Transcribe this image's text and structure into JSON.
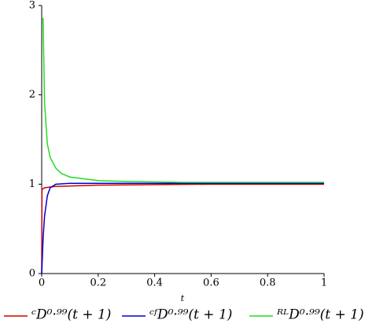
{
  "chart_data": {
    "type": "line",
    "x_label": "t",
    "xlim": [
      0,
      1
    ],
    "ylim": [
      0,
      3
    ],
    "xticks": [
      0,
      0.2,
      0.4,
      0.6,
      0.8,
      1
    ],
    "yticks": [
      0,
      1,
      2,
      3
    ],
    "series": [
      {
        "name": "ᶜD⁰·⁹⁹(t + 1)",
        "color": "#d00000",
        "x": [
          0,
          0.001,
          0.005,
          0.01,
          0.05,
          0.1,
          0.2,
          0.4,
          0.6,
          0.8,
          1
        ],
        "values": [
          0,
          0.94,
          0.95,
          0.96,
          0.975,
          0.98,
          0.99,
          0.995,
          1.0,
          1.0,
          1.0
        ]
      },
      {
        "name": "ᶜᶠD⁰·⁹⁹(t + 1)",
        "color": "#0000d0",
        "x": [
          0,
          0.005,
          0.01,
          0.02,
          0.03,
          0.05,
          0.1,
          0.4,
          1
        ],
        "values": [
          0,
          0.39,
          0.64,
          0.87,
          0.96,
          1.0,
          1.01,
          1.01,
          1.01
        ]
      },
      {
        "name": "ᴿᴸD⁰·⁹⁹(t + 1)",
        "color": "#22dd22",
        "x": [
          0.005,
          0.01,
          0.02,
          0.03,
          0.05,
          0.07,
          0.1,
          0.15,
          0.2,
          0.3,
          0.5,
          0.7,
          1
        ],
        "values": [
          2.86,
          1.92,
          1.45,
          1.3,
          1.18,
          1.12,
          1.08,
          1.06,
          1.04,
          1.03,
          1.02,
          1.02,
          1.02
        ]
      }
    ]
  }
}
